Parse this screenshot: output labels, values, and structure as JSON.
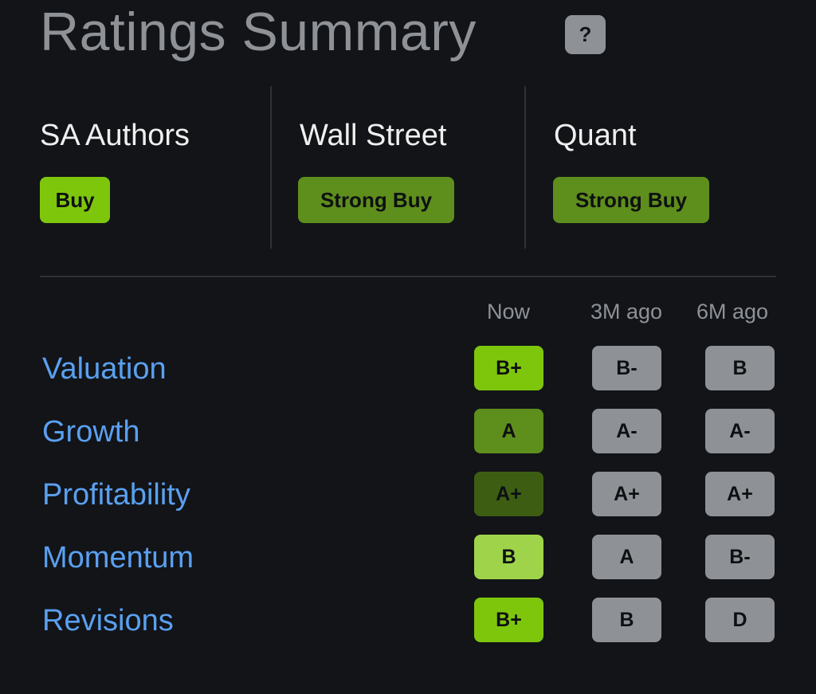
{
  "header": {
    "title": "Ratings Summary",
    "help_icon": "?"
  },
  "ratings": [
    {
      "source": "SA Authors",
      "value": "Buy",
      "color": "#7ec60c"
    },
    {
      "source": "Wall Street",
      "value": "Strong Buy",
      "color": "#5e8e1c"
    },
    {
      "source": "Quant",
      "value": "Strong Buy",
      "color": "#5e8e1c"
    }
  ],
  "grades": {
    "columns": [
      "Now",
      "3M ago",
      "6M ago"
    ],
    "rows": [
      {
        "factor": "Valuation",
        "now": "B+",
        "m3": "B-",
        "m6": "B",
        "now_color": "#7ec60c"
      },
      {
        "factor": "Growth",
        "now": "A",
        "m3": "A-",
        "m6": "A-",
        "now_color": "#5e8e1c"
      },
      {
        "factor": "Profitability",
        "now": "A+",
        "m3": "A+",
        "m6": "A+",
        "now_color": "#3d5e12"
      },
      {
        "factor": "Momentum",
        "now": "B",
        "m3": "A",
        "m6": "B-",
        "now_color": "#9fd44a"
      },
      {
        "factor": "Revisions",
        "now": "B+",
        "m3": "B",
        "m6": "D",
        "now_color": "#7ec60c"
      }
    ],
    "history_color": "#8e9297"
  }
}
